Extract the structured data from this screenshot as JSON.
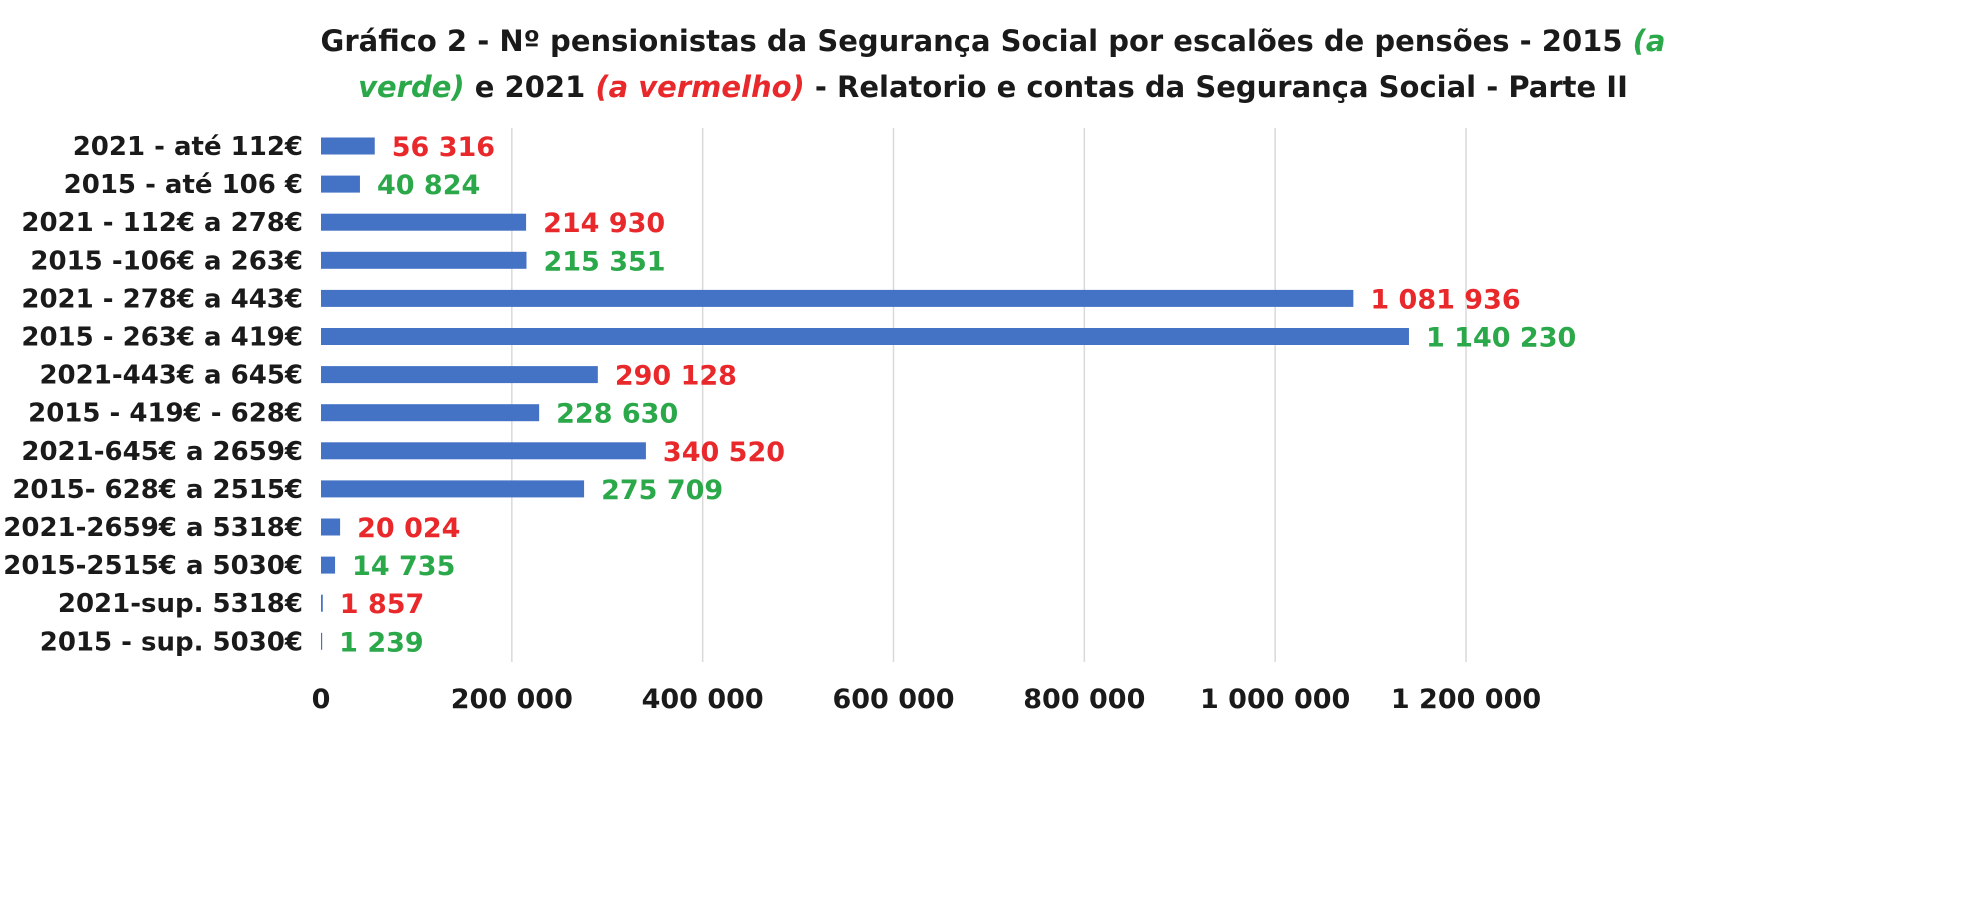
{
  "title": {
    "part1": "Gráfico 2 - Nº pensionistas da Segurança Social por escalões de pensões - 2015 ",
    "part2_green": "(a",
    "part3_green": "verde)",
    "part4": " e 2021 ",
    "part5_red": "(a vermelho)",
    "part6": " - Relatorio e contas da Segurança Social  - Parte II"
  },
  "colors": {
    "bar": "#4472c4",
    "label_2021": "#e8282b",
    "label_2015": "#2aa84a",
    "grid": "#d9d9d9",
    "axis_text": "#1a1a1a"
  },
  "chart_data": {
    "type": "bar",
    "orientation": "horizontal",
    "categories": [
      "2021 - até 112€",
      "2015 - até 106 €",
      "2021 - 112€ a 278€",
      "2015 -106€ a 263€",
      "2021 - 278€ a 443€",
      "2015 - 263€ a 419€",
      "2021-443€ a 645€",
      "2015 - 419€ - 628€",
      "2021-645€ a 2659€",
      "2015- 628€ a 2515€",
      "2021-2659€ a 5318€",
      "2015-2515€ a 5030€",
      "2021-sup. 5318€",
      "2015 - sup. 5030€"
    ],
    "values": [
      56316,
      40824,
      214930,
      215351,
      1081936,
      1140230,
      290128,
      228630,
      340520,
      275709,
      20024,
      14735,
      1857,
      1239
    ],
    "data_labels": [
      "56 316",
      "40 824",
      "214 930",
      "215 351",
      "1 081 936",
      "1 140 230",
      "290 128",
      "228 630",
      "340 520",
      "275 709",
      "20 024",
      "14 735",
      "1 857",
      "1 239"
    ],
    "label_years": [
      "2021",
      "2015",
      "2021",
      "2015",
      "2021",
      "2015",
      "2021",
      "2015",
      "2021",
      "2015",
      "2021",
      "2015",
      "2021",
      "2015"
    ],
    "xlim": [
      0,
      1200000
    ],
    "x_ticks": [
      0,
      200000,
      400000,
      600000,
      800000,
      1000000,
      1200000
    ],
    "x_tick_labels": [
      "0",
      "200 000",
      "400 000",
      "600 000",
      "800 000",
      "1 000 000",
      "1 200 000"
    ],
    "grid": "vertical",
    "xlabel": "",
    "ylabel": ""
  }
}
